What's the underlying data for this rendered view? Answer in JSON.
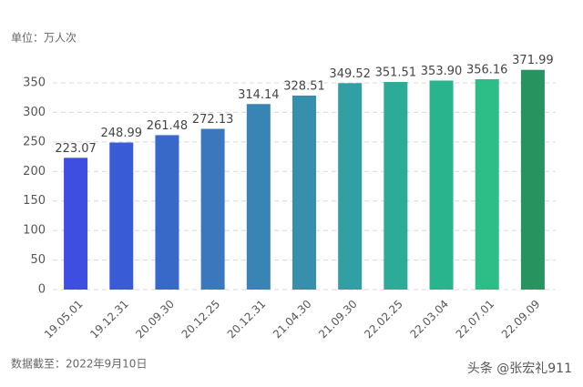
{
  "chart_data": {
    "type": "bar",
    "unit_label": "单位：万人次",
    "footnote": "数据截至：2022年9月10日",
    "watermark": "头条 @张宏礼911",
    "categories": [
      "19.05.01",
      "19.12.31",
      "20.09.30",
      "20.12.25",
      "20.12.31",
      "21.04.30",
      "21.09.30",
      "22.02.25",
      "22.03.04",
      "22.07.01",
      "22.09.09"
    ],
    "values": [
      223.07,
      248.99,
      261.48,
      272.13,
      314.14,
      328.51,
      349.52,
      351.51,
      353.9,
      356.16,
      371.99
    ],
    "value_labels": [
      "223.07",
      "248.99",
      "261.48",
      "272.13",
      "314.14",
      "328.51",
      "349.52",
      "351.51",
      "353.90",
      "356.16",
      "371.99"
    ],
    "colors": [
      "#3d4ee0",
      "#3a5bd6",
      "#3869c8",
      "#3a77bc",
      "#3884b4",
      "#3690ac",
      "#31a0a4",
      "#2cab98",
      "#2ab48e",
      "#2dbd86",
      "#27935e"
    ],
    "ylim": [
      0,
      350
    ],
    "yticks": [
      0,
      50,
      100,
      150,
      200,
      250,
      300,
      350
    ],
    "grid": true
  }
}
